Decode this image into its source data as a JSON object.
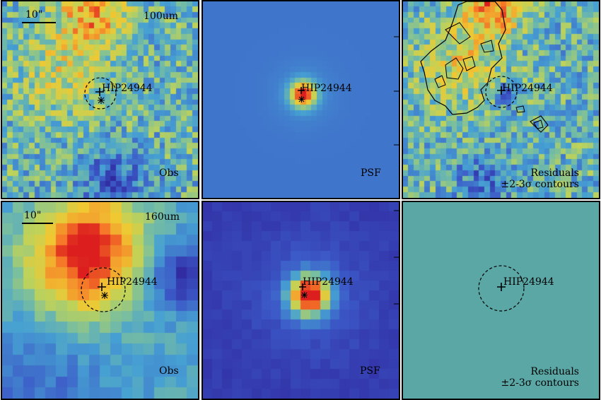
{
  "panels": [
    {
      "id": "r1c1",
      "band": "100um",
      "kind": "Obs",
      "scale_label": "10\"",
      "band_label": "100um",
      "source_label": "HIP24944",
      "corner_label": "Obs",
      "corner_label2": ""
    },
    {
      "id": "r1c2",
      "band": "100um",
      "kind": "PSF",
      "scale_label": "",
      "band_label": "",
      "source_label": "HIP24944",
      "corner_label": "PSF",
      "corner_label2": ""
    },
    {
      "id": "r1c3",
      "band": "100um",
      "kind": "Residuals",
      "scale_label": "",
      "band_label": "",
      "source_label": "HIP24944",
      "corner_label": "Residuals",
      "corner_label2": "±2-3σ contours"
    },
    {
      "id": "r2c1",
      "band": "160um",
      "kind": "Obs",
      "scale_label": "10\"",
      "band_label": "160um",
      "source_label": "HIP24944",
      "corner_label": "Obs",
      "corner_label2": ""
    },
    {
      "id": "r2c2",
      "band": "160um",
      "kind": "PSF",
      "scale_label": "",
      "band_label": "",
      "source_label": "HIP24944",
      "corner_label": "PSF",
      "corner_label2": ""
    },
    {
      "id": "r2c3",
      "band": "160um",
      "kind": "Residuals",
      "scale_label": "",
      "band_label": "",
      "source_label": "HIP24944",
      "corner_label": "Residuals",
      "corner_label2": "±2-3σ contours"
    }
  ],
  "axis_ticks": {
    "r1c2_right": [
      "30",
      "20",
      "10"
    ],
    "r2c2_right": [
      "20",
      "15",
      "10"
    ]
  },
  "colors": {
    "residual_flat": "#5aa7a6",
    "psf100_bg": "#4a90c8",
    "psf160_bg": "#3c52b0",
    "frame": "#000000"
  }
}
